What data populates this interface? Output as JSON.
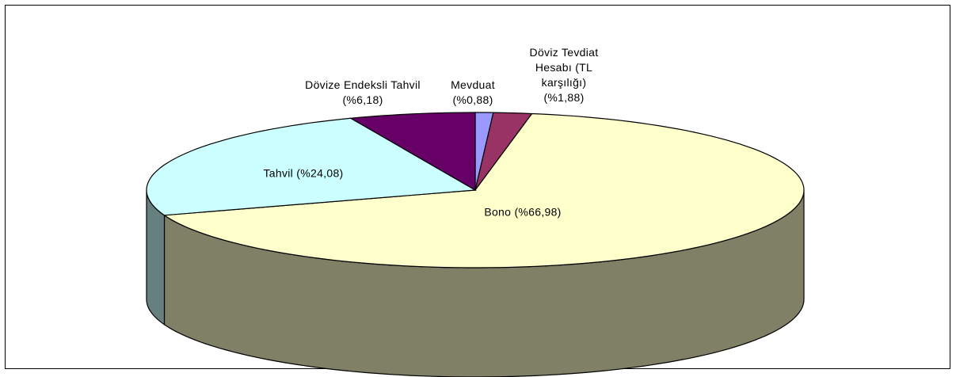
{
  "chart_data": {
    "type": "pie3d",
    "categories": [
      "Mevduat",
      "Döviz Tevdiat Hesabı (TL karşılığı)",
      "Bono",
      "Tahvil",
      "Dövize Endeksli Tahvil"
    ],
    "values": [
      0.88,
      1.88,
      66.98,
      24.08,
      6.18
    ],
    "value_labels": [
      "(%0,88)",
      "(%1,88)",
      "(%66,98)",
      "(%24,08)",
      "(%6,18)"
    ],
    "colors": [
      "#9999ff",
      "#993366",
      "#ffffcc",
      "#ccffff",
      "#660066"
    ]
  }
}
